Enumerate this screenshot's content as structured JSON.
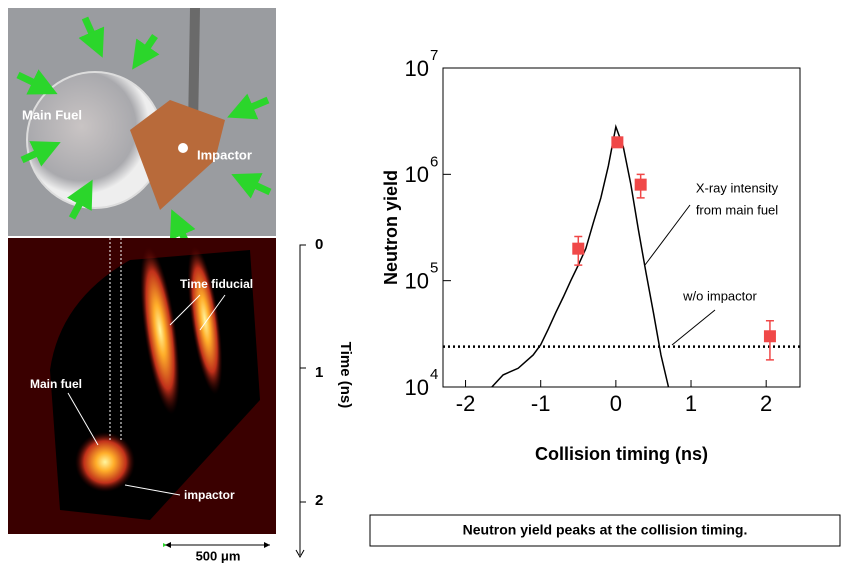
{
  "chart_data": {
    "type": "line",
    "xlabel": "Collision timing (ns)",
    "ylabel": "Neutron yield",
    "log_y": true,
    "xlim": [
      -2.3,
      2.45
    ],
    "ylim": [
      10000,
      10000000
    ],
    "xticks": [
      -2,
      -1,
      0,
      1,
      2
    ],
    "yticks": [
      {
        "value": 10000,
        "label": "10",
        "exponent": "4"
      },
      {
        "value": 100000,
        "label": "10",
        "exponent": "5"
      },
      {
        "value": 1000000,
        "label": "10",
        "exponent": "6"
      },
      {
        "value": 10000000,
        "label": "10",
        "exponent": "7"
      }
    ],
    "series": [
      {
        "kind": "line",
        "color": "#000000",
        "x": [
          -1.65,
          -1.5,
          -1.3,
          -1.1,
          -1.0,
          -0.9,
          -0.8,
          -0.7,
          -0.6,
          -0.5,
          -0.4,
          -0.3,
          -0.2,
          -0.1,
          0,
          0.1,
          0.2,
          0.3,
          0.4,
          0.5,
          0.6,
          0.7
        ],
        "values": [
          10000,
          13000,
          15000,
          20000,
          25000,
          35000,
          50000,
          70000,
          100000,
          140000,
          200000,
          350000,
          600000,
          1200000,
          2800000,
          1800000,
          800000,
          300000,
          120000,
          50000,
          20000,
          10000
        ]
      },
      {
        "kind": "points",
        "color": "#f04848",
        "x": [
          -0.5,
          0.02,
          0.33,
          2.05
        ],
        "values": [
          200000,
          2000000,
          800000,
          30000
        ],
        "errors": [
          60000,
          0,
          200000,
          12000
        ]
      }
    ],
    "reference_line": {
      "value": 24000
    },
    "annotations": [
      "X-ray intensity",
      "from main fuel",
      "w/o impactor"
    ],
    "caption": "Neutron yield peaks at the collision timing."
  },
  "photo": {
    "labels": [
      "Main Fuel",
      "Impactor"
    ]
  },
  "streak_image": {
    "labels": [
      "Time fiducial",
      "Main fuel",
      "impactor"
    ],
    "time_label": "Time (ns)",
    "time_ticks": [
      0,
      1,
      2
    ],
    "scale_bar": "500 μm"
  }
}
